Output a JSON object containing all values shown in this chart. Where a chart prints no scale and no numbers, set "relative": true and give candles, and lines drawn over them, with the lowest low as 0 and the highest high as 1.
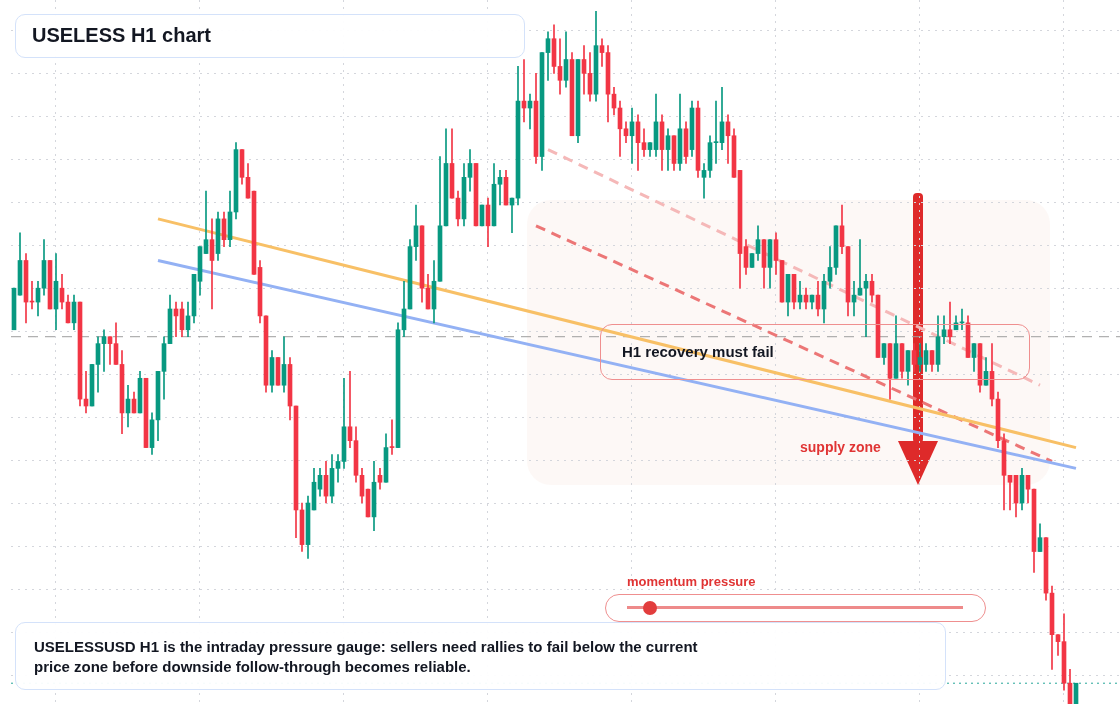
{
  "chart_data": {
    "type": "candlestick",
    "title": "USELESS H1 chart",
    "relative": true,
    "grid": true,
    "legend": false,
    "colors": [
      "#089981",
      "#089981",
      "#f23645",
      "#f23645",
      "#089981",
      "#089981",
      "#f23645",
      "#089981",
      "#f23645",
      "#f23645",
      "#089981",
      "#f23645",
      "#f23645",
      "#089981",
      "#089981",
      "#089981",
      "#f23645",
      "#f23645",
      "#f23645",
      "#089981",
      "#f23645",
      "#089981",
      "#f23645",
      "#089981",
      "#089981",
      "#089981",
      "#089981",
      "#f23645",
      "#f23645",
      "#089981",
      "#089981",
      "#089981",
      "#089981",
      "#f23645",
      "#089981",
      "#f23645",
      "#089981",
      "#089981",
      "#f23645",
      "#f23645",
      "#f23645",
      "#f23645",
      "#f23645",
      "#089981",
      "#f23645",
      "#089981",
      "#f23645",
      "#f23645",
      "#f23645",
      "#089981",
      "#089981",
      "#089981",
      "#f23645",
      "#089981",
      "#089981",
      "#089981",
      "#f23645",
      "#f23645",
      "#f23645",
      "#f23645",
      "#089981",
      "#f23645",
      "#089981",
      "#f23645",
      "#089981",
      "#089981",
      "#089981",
      "#089981",
      "#f23645",
      "#f23645",
      "#089981",
      "#089981",
      "#089981",
      "#f23645",
      "#f23645",
      "#089981",
      "#089981",
      "#f23645",
      "#089981",
      "#f23645",
      "#089981",
      "#089981",
      "#f23645",
      "#089981",
      "#089981",
      "#f23645",
      "#089981",
      "#f23645",
      "#089981",
      "#089981",
      "#f23645",
      "#f23645",
      "#089981",
      "#f23645",
      "#089981",
      "#f23645",
      "#f23645",
      "#089981",
      "#f23645",
      "#f23645",
      "#f23645",
      "#f23645",
      "#f23645",
      "#089981",
      "#f23645",
      "#f23645",
      "#089981",
      "#089981",
      "#f23645",
      "#089981",
      "#f23645",
      "#089981",
      "#f23645",
      "#089981",
      "#f23645",
      "#089981",
      "#089981",
      "#089981",
      "#089981",
      "#f23645",
      "#f23645",
      "#f23645",
      "#f23645",
      "#089981",
      "#089981",
      "#f23645",
      "#089981",
      "#f23645",
      "#f23645",
      "#089981",
      "#f23645",
      "#089981",
      "#f23645",
      "#089981",
      "#f23645",
      "#089981",
      "#089981",
      "#089981",
      "#f23645",
      "#f23645",
      "#089981",
      "#089981",
      "#089981",
      "#f23645",
      "#f23645",
      "#089981",
      "#f23645",
      "#089981",
      "#f23645",
      "#089981",
      "#f23645",
      "#089981",
      "#089981",
      "#f23645",
      "#089981",
      "#089981",
      "#f23645",
      "#089981",
      "#089981",
      "#f23645",
      "#089981",
      "#f23645",
      "#089981",
      "#f23645",
      "#f23645",
      "#f23645",
      "#f23645",
      "#f23645",
      "#089981",
      "#f23645",
      "#f23645",
      "#089981",
      "#f23645",
      "#f23645",
      "#f23645",
      "#f23645",
      "#f23645",
      "#089981"
    ],
    "categories": [
      null,
      null,
      null,
      null,
      null,
      null,
      null,
      null,
      null,
      null,
      null,
      null,
      null,
      null,
      null,
      null,
      null,
      null,
      null,
      null,
      null,
      null,
      null,
      null,
      null,
      null,
      null,
      null,
      null,
      null,
      null,
      null,
      null,
      null,
      null,
      null,
      null,
      null,
      null,
      null,
      null,
      null,
      null,
      null,
      null,
      null,
      null,
      null,
      null,
      null,
      null,
      null,
      null,
      null,
      null,
      null,
      null,
      null,
      null,
      null,
      null,
      null,
      null,
      null,
      null,
      null,
      null,
      null,
      null,
      null,
      null,
      null,
      null,
      null,
      null,
      null,
      null,
      null,
      null,
      null,
      null,
      null,
      null,
      null,
      null,
      null,
      null,
      null,
      null,
      null,
      null,
      null,
      null,
      null,
      null,
      null,
      null,
      null,
      null,
      null,
      null,
      null,
      null,
      null,
      null,
      null,
      null,
      null,
      null,
      null,
      null,
      null,
      null,
      null,
      null,
      null,
      null,
      null,
      null,
      null,
      null,
      null,
      null,
      null,
      null,
      null,
      null,
      null,
      null,
      null,
      null,
      null,
      null,
      null,
      null,
      null,
      null,
      null,
      null,
      null,
      null,
      null,
      null,
      null,
      null,
      null,
      null,
      null,
      null,
      null,
      null,
      null,
      null,
      null,
      null,
      null,
      null,
      null,
      null,
      null,
      null,
      null,
      null,
      null,
      null,
      null,
      null,
      null,
      null,
      null,
      null,
      null,
      null,
      null,
      null,
      null,
      null,
      null
    ],
    "ohlc": [
      [
        0.54,
        0.6,
        0.54,
        0.6
      ],
      [
        0.59,
        0.68,
        0.59,
        0.64
      ],
      [
        0.64,
        0.65,
        0.55,
        0.58
      ],
      [
        0.58,
        0.61,
        0.57,
        0.58
      ],
      [
        0.58,
        0.61,
        0.56,
        0.6
      ],
      [
        0.6,
        0.67,
        0.59,
        0.64
      ],
      [
        0.64,
        0.64,
        0.57,
        0.57
      ],
      [
        0.57,
        0.65,
        0.54,
        0.61
      ],
      [
        0.6,
        0.62,
        0.57,
        0.58
      ],
      [
        0.58,
        0.59,
        0.55,
        0.55
      ],
      [
        0.55,
        0.59,
        0.54,
        0.58
      ],
      [
        0.58,
        0.58,
        0.43,
        0.44
      ],
      [
        0.44,
        0.48,
        0.42,
        0.43
      ],
      [
        0.43,
        0.49,
        0.43,
        0.49
      ],
      [
        0.49,
        0.53,
        0.45,
        0.52
      ],
      [
        0.52,
        0.54,
        0.48,
        0.53
      ],
      [
        0.53,
        0.53,
        0.49,
        0.52
      ],
      [
        0.52,
        0.55,
        0.49,
        0.49
      ],
      [
        0.49,
        0.51,
        0.39,
        0.42
      ],
      [
        0.42,
        0.46,
        0.4,
        0.44
      ],
      [
        0.44,
        0.45,
        0.42,
        0.42
      ],
      [
        0.42,
        0.48,
        0.42,
        0.47
      ],
      [
        0.47,
        0.47,
        0.37,
        0.37
      ],
      [
        0.37,
        0.42,
        0.36,
        0.41
      ],
      [
        0.41,
        0.48,
        0.38,
        0.48
      ],
      [
        0.48,
        0.53,
        0.44,
        0.52
      ],
      [
        0.52,
        0.59,
        0.52,
        0.57
      ],
      [
        0.57,
        0.58,
        0.53,
        0.56
      ],
      [
        0.57,
        0.58,
        0.53,
        0.54
      ],
      [
        0.54,
        0.58,
        0.53,
        0.56
      ],
      [
        0.56,
        0.62,
        0.55,
        0.62
      ],
      [
        0.61,
        0.66,
        0.59,
        0.66
      ],
      [
        0.65,
        0.74,
        0.65,
        0.67
      ],
      [
        0.67,
        0.7,
        0.57,
        0.64
      ],
      [
        0.65,
        0.71,
        0.64,
        0.7
      ],
      [
        0.7,
        0.71,
        0.66,
        0.67
      ],
      [
        0.67,
        0.74,
        0.66,
        0.71
      ],
      [
        0.71,
        0.81,
        0.7,
        0.8
      ],
      [
        0.8,
        0.8,
        0.75,
        0.76
      ],
      [
        0.76,
        0.78,
        0.73,
        0.73
      ],
      [
        0.74,
        0.74,
        0.62,
        0.62
      ],
      [
        0.63,
        0.64,
        0.55,
        0.56
      ],
      [
        0.56,
        0.56,
        0.45,
        0.46
      ],
      [
        0.46,
        0.51,
        0.45,
        0.5
      ],
      [
        0.5,
        0.5,
        0.46,
        0.46
      ],
      [
        0.46,
        0.53,
        0.45,
        0.49
      ],
      [
        0.49,
        0.5,
        0.41,
        0.43
      ],
      [
        0.43,
        0.43,
        0.24,
        0.28
      ],
      [
        0.28,
        0.29,
        0.22,
        0.23
      ],
      [
        0.23,
        0.3,
        0.21,
        0.29
      ],
      [
        0.28,
        0.34,
        0.28,
        0.32
      ],
      [
        0.31,
        0.34,
        0.3,
        0.33
      ],
      [
        0.33,
        0.35,
        0.29,
        0.3
      ],
      [
        0.3,
        0.36,
        0.29,
        0.34
      ],
      [
        0.34,
        0.36,
        0.32,
        0.35
      ],
      [
        0.35,
        0.47,
        0.34,
        0.4
      ],
      [
        0.4,
        0.48,
        0.37,
        0.38
      ],
      [
        0.38,
        0.4,
        0.32,
        0.33
      ],
      [
        0.33,
        0.34,
        0.29,
        0.3
      ],
      [
        0.31,
        0.31,
        0.27,
        0.27
      ],
      [
        0.27,
        0.35,
        0.25,
        0.32
      ],
      [
        0.33,
        0.34,
        0.31,
        0.32
      ],
      [
        0.32,
        0.39,
        0.32,
        0.37
      ],
      [
        0.37,
        0.41,
        0.36,
        0.37
      ],
      [
        0.37,
        0.55,
        0.37,
        0.54
      ],
      [
        0.54,
        0.61,
        0.53,
        0.57
      ],
      [
        0.57,
        0.67,
        0.57,
        0.66
      ],
      [
        0.66,
        0.72,
        0.64,
        0.69
      ],
      [
        0.69,
        0.69,
        0.58,
        0.6
      ],
      [
        0.6,
        0.62,
        0.57,
        0.57
      ],
      [
        0.57,
        0.64,
        0.55,
        0.61
      ],
      [
        0.61,
        0.79,
        0.61,
        0.69
      ],
      [
        0.69,
        0.83,
        0.69,
        0.78
      ],
      [
        0.78,
        0.83,
        0.73,
        0.73
      ],
      [
        0.73,
        0.74,
        0.69,
        0.7
      ],
      [
        0.7,
        0.78,
        0.69,
        0.76
      ],
      [
        0.76,
        0.8,
        0.74,
        0.78
      ],
      [
        0.78,
        0.78,
        0.69,
        0.69
      ],
      [
        0.69,
        0.72,
        0.69,
        0.72
      ],
      [
        0.72,
        0.73,
        0.66,
        0.69
      ],
      [
        0.69,
        0.78,
        0.69,
        0.75
      ],
      [
        0.75,
        0.77,
        0.72,
        0.76
      ],
      [
        0.76,
        0.77,
        0.72,
        0.72
      ],
      [
        0.72,
        0.73,
        0.68,
        0.73
      ],
      [
        0.73,
        0.92,
        0.72,
        0.87
      ],
      [
        0.87,
        0.93,
        0.84,
        0.86
      ],
      [
        0.86,
        0.88,
        0.83,
        0.87
      ],
      [
        0.87,
        0.91,
        0.78,
        0.79
      ],
      [
        0.79,
        0.94,
        0.77,
        0.94
      ],
      [
        0.94,
        0.97,
        0.9,
        0.96
      ],
      [
        0.96,
        0.98,
        0.91,
        0.92
      ],
      [
        0.92,
        0.96,
        0.88,
        0.9
      ],
      [
        0.9,
        0.97,
        0.89,
        0.93
      ],
      [
        0.93,
        0.94,
        0.82,
        0.82
      ],
      [
        0.82,
        0.93,
        0.81,
        0.93
      ],
      [
        0.93,
        0.95,
        0.88,
        0.91
      ],
      [
        0.91,
        0.94,
        0.87,
        0.88
      ],
      [
        0.88,
        1,
        0.87,
        0.95
      ],
      [
        0.95,
        0.96,
        0.92,
        0.94
      ],
      [
        0.94,
        0.95,
        0.84,
        0.88
      ],
      [
        0.88,
        0.89,
        0.85,
        0.86
      ],
      [
        0.86,
        0.87,
        0.79,
        0.83
      ],
      [
        0.83,
        0.84,
        0.81,
        0.82
      ],
      [
        0.82,
        0.86,
        0.78,
        0.84
      ],
      [
        0.84,
        0.85,
        0.77,
        0.81
      ],
      [
        0.81,
        0.83,
        0.79,
        0.8
      ],
      [
        0.8,
        0.81,
        0.79,
        0.81
      ],
      [
        0.8,
        0.88,
        0.79,
        0.84
      ],
      [
        0.84,
        0.85,
        0.77,
        0.8
      ],
      [
        0.8,
        0.83,
        0.77,
        0.82
      ],
      [
        0.82,
        0.82,
        0.77,
        0.78
      ],
      [
        0.78,
        0.88,
        0.77,
        0.83
      ],
      [
        0.83,
        0.84,
        0.78,
        0.79
      ],
      [
        0.8,
        0.87,
        0.79,
        0.86
      ],
      [
        0.86,
        0.87,
        0.76,
        0.77
      ],
      [
        0.76,
        0.78,
        0.73,
        0.77
      ],
      [
        0.77,
        0.82,
        0.76,
        0.81
      ],
      [
        0.81,
        0.87,
        0.78,
        0.81
      ],
      [
        0.81,
        0.89,
        0.8,
        0.84
      ],
      [
        0.84,
        0.85,
        0.78,
        0.82
      ],
      [
        0.82,
        0.83,
        0.76,
        0.76
      ],
      [
        0.77,
        0.77,
        0.6,
        0.65
      ],
      [
        0.66,
        0.67,
        0.62,
        0.63
      ],
      [
        0.63,
        0.65,
        0.63,
        0.65
      ],
      [
        0.65,
        0.69,
        0.64,
        0.67
      ],
      [
        0.67,
        0.67,
        0.6,
        0.63
      ],
      [
        0.63,
        0.67,
        0.6,
        0.67
      ],
      [
        0.67,
        0.68,
        0.62,
        0.64
      ],
      [
        0.64,
        0.64,
        0.58,
        0.58
      ],
      [
        0.58,
        0.62,
        0.56,
        0.62
      ],
      [
        0.62,
        0.62,
        0.57,
        0.58
      ],
      [
        0.58,
        0.61,
        0.57,
        0.59
      ],
      [
        0.59,
        0.6,
        0.57,
        0.58
      ],
      [
        0.58,
        0.59,
        0.57,
        0.59
      ],
      [
        0.59,
        0.61,
        0.56,
        0.57
      ],
      [
        0.57,
        0.62,
        0.55,
        0.61
      ],
      [
        0.61,
        0.66,
        0.6,
        0.63
      ],
      [
        0.63,
        0.69,
        0.62,
        0.69
      ],
      [
        0.69,
        0.72,
        0.65,
        0.66
      ],
      [
        0.66,
        0.66,
        0.56,
        0.58
      ],
      [
        0.58,
        0.61,
        0.56,
        0.59
      ],
      [
        0.59,
        0.67,
        0.59,
        0.6
      ],
      [
        0.6,
        0.62,
        0.53,
        0.61
      ],
      [
        0.61,
        0.62,
        0.58,
        0.59
      ],
      [
        0.59,
        0.59,
        0.5,
        0.5
      ],
      [
        0.5,
        0.52,
        0.49,
        0.52
      ],
      [
        0.52,
        0.52,
        0.44,
        0.47
      ],
      [
        0.47,
        0.56,
        0.47,
        0.52
      ],
      [
        0.52,
        0.52,
        0.47,
        0.48
      ],
      [
        0.48,
        0.51,
        0.46,
        0.51
      ],
      [
        0.51,
        0.52,
        0.48,
        0.49
      ],
      [
        0.49,
        0.52,
        0.48,
        0.5
      ],
      [
        0.49,
        0.52,
        0.48,
        0.51
      ],
      [
        0.51,
        0.51,
        0.48,
        0.49
      ],
      [
        0.49,
        0.56,
        0.48,
        0.53
      ],
      [
        0.53,
        0.56,
        0.52,
        0.54
      ],
      [
        0.54,
        0.58,
        0.52,
        0.53
      ],
      [
        0.54,
        0.56,
        0.54,
        0.55
      ],
      [
        0.55,
        0.57,
        0.54,
        0.55
      ],
      [
        0.55,
        0.56,
        0.5,
        0.5
      ],
      [
        0.5,
        0.52,
        0.48,
        0.52
      ],
      [
        0.52,
        0.52,
        0.45,
        0.46
      ],
      [
        0.46,
        0.5,
        0.46,
        0.48
      ],
      [
        0.48,
        0.52,
        0.43,
        0.44
      ],
      [
        0.44,
        0.45,
        0.37,
        0.38
      ],
      [
        0.38,
        0.39,
        0.28,
        0.33
      ],
      [
        0.33,
        0.33,
        0.28,
        0.32
      ],
      [
        0.33,
        0.33,
        0.27,
        0.29
      ],
      [
        0.29,
        0.34,
        0.28,
        0.33
      ],
      [
        0.33,
        0.33,
        0.29,
        0.31
      ],
      [
        0.31,
        0.31,
        0.19,
        0.22
      ],
      [
        0.22,
        0.26,
        0.22,
        0.24
      ],
      [
        0.24,
        0.24,
        0.15,
        0.16
      ],
      [
        0.16,
        0.17,
        0.05,
        0.1
      ],
      [
        0.1,
        0.1,
        0.07,
        0.09
      ],
      [
        0.09,
        0.13,
        0.02,
        0.03
      ],
      [
        0.03,
        0.05,
        0,
        0
      ],
      [
        0,
        0.03,
        0,
        0.03
      ]
    ],
    "series": [
      {
        "type": "line",
        "color": "#f8c066",
        "values": [
          null,
          null,
          null,
          null,
          null,
          null,
          null,
          null,
          null,
          null,
          null,
          null,
          null,
          null,
          null,
          null,
          null,
          null,
          null,
          null,
          null,
          null,
          null,
          null,
          0.7,
          null,
          null,
          null,
          null,
          null,
          null,
          null,
          null,
          null,
          null,
          null,
          null,
          null,
          null,
          null,
          null,
          null,
          null,
          null,
          null,
          null,
          null,
          null,
          null,
          null,
          null,
          null,
          null,
          null,
          null,
          null,
          null,
          null,
          null,
          null,
          null,
          null,
          null,
          null,
          null,
          null,
          null,
          null,
          null,
          null,
          null,
          null,
          null,
          null,
          null,
          null,
          null,
          null,
          null,
          null,
          null,
          null,
          null,
          null,
          null,
          null,
          null,
          null,
          null,
          null,
          null,
          null,
          null,
          null,
          null,
          null,
          null,
          null,
          null,
          null,
          null,
          null,
          null,
          null,
          null,
          null,
          null,
          null,
          null,
          null,
          null,
          null,
          null,
          null,
          null,
          null,
          null,
          null,
          null,
          null,
          null,
          null,
          null,
          null,
          null,
          null,
          null,
          null,
          null,
          null,
          null,
          null,
          null,
          null,
          null,
          null,
          null,
          null,
          null,
          null,
          null,
          null,
          null,
          null,
          null,
          null,
          null,
          null,
          null,
          null,
          null,
          null,
          null,
          null,
          null,
          null,
          null,
          null,
          null,
          null,
          null,
          null,
          null,
          null,
          null,
          null,
          null,
          null,
          null,
          null,
          null,
          null,
          null,
          null,
          null,
          null,
          null,
          0.37
        ]
      },
      {
        "type": "line",
        "color": "#93b1f4",
        "values": [
          null,
          null,
          null,
          null,
          null,
          null,
          null,
          null,
          null,
          null,
          null,
          null,
          null,
          null,
          null,
          null,
          null,
          null,
          null,
          null,
          null,
          null,
          null,
          null,
          0.64,
          null,
          null,
          null,
          null,
          null,
          null,
          null,
          null,
          null,
          null,
          null,
          null,
          null,
          null,
          null,
          null,
          null,
          null,
          null,
          null,
          null,
          null,
          null,
          null,
          null,
          null,
          null,
          null,
          null,
          null,
          null,
          null,
          null,
          null,
          null,
          null,
          null,
          null,
          null,
          null,
          null,
          null,
          null,
          null,
          null,
          null,
          null,
          null,
          null,
          null,
          null,
          null,
          null,
          null,
          null,
          null,
          null,
          null,
          null,
          null,
          null,
          null,
          null,
          null,
          null,
          null,
          null,
          null,
          null,
          null,
          null,
          null,
          null,
          null,
          null,
          null,
          null,
          null,
          null,
          null,
          null,
          null,
          null,
          null,
          null,
          null,
          null,
          null,
          null,
          null,
          null,
          null,
          null,
          null,
          null,
          null,
          null,
          null,
          null,
          null,
          null,
          null,
          null,
          null,
          null,
          null,
          null,
          null,
          null,
          null,
          null,
          null,
          null,
          null,
          null,
          null,
          null,
          null,
          null,
          null,
          null,
          null,
          null,
          null,
          null,
          null,
          null,
          null,
          null,
          null,
          null,
          null,
          null,
          null,
          null,
          null,
          null,
          null,
          null,
          null,
          null,
          null,
          null,
          null,
          null,
          null,
          null,
          null,
          null,
          null,
          null,
          null,
          0.34
        ]
      },
      {
        "type": "line",
        "color": "#ec7676",
        "line_style": "dashed",
        "values": [
          null,
          null,
          null,
          null,
          null,
          null,
          null,
          null,
          null,
          null,
          null,
          null,
          null,
          null,
          null,
          null,
          null,
          null,
          null,
          null,
          null,
          null,
          null,
          null,
          null,
          null,
          null,
          null,
          null,
          null,
          null,
          null,
          null,
          null,
          null,
          null,
          null,
          null,
          null,
          null,
          null,
          null,
          null,
          null,
          null,
          null,
          null,
          null,
          null,
          null,
          null,
          null,
          null,
          null,
          null,
          null,
          null,
          null,
          null,
          null,
          null,
          null,
          null,
          null,
          null,
          null,
          null,
          null,
          null,
          null,
          null,
          null,
          null,
          null,
          null,
          null,
          null,
          null,
          null,
          null,
          null,
          null,
          null,
          null,
          null,
          null,
          null,
          0.69,
          null,
          null,
          null,
          null,
          null,
          null,
          null,
          null,
          null,
          null,
          null,
          null,
          null,
          null,
          null,
          null,
          null,
          null,
          null,
          null,
          null,
          null,
          null,
          null,
          null,
          null,
          null,
          null,
          null,
          null,
          null,
          null,
          null,
          null,
          null,
          null,
          null,
          null,
          null,
          null,
          null,
          null,
          null,
          null,
          null,
          null,
          null,
          null,
          null,
          null,
          null,
          null,
          null,
          null,
          null,
          null,
          null,
          null,
          null,
          null,
          null,
          null,
          null,
          null,
          null,
          null,
          null,
          null,
          null,
          null,
          null,
          null,
          null,
          null,
          null,
          null,
          null,
          null,
          null,
          null,
          null,
          null,
          null,
          null,
          null,
          0.35,
          null,
          null,
          null,
          null
        ]
      },
      {
        "type": "line",
        "color": "#f5b8b8",
        "line_style": "dashed",
        "values": [
          null,
          null,
          null,
          null,
          null,
          null,
          null,
          null,
          null,
          null,
          null,
          null,
          null,
          null,
          null,
          null,
          null,
          null,
          null,
          null,
          null,
          null,
          null,
          null,
          null,
          null,
          null,
          null,
          null,
          null,
          null,
          null,
          null,
          null,
          null,
          null,
          null,
          null,
          null,
          null,
          null,
          null,
          null,
          null,
          null,
          null,
          null,
          null,
          null,
          null,
          null,
          null,
          null,
          null,
          null,
          null,
          null,
          null,
          null,
          null,
          null,
          null,
          null,
          null,
          null,
          null,
          null,
          null,
          null,
          null,
          null,
          null,
          null,
          null,
          null,
          null,
          null,
          null,
          null,
          null,
          null,
          null,
          null,
          null,
          null,
          null,
          null,
          null,
          null,
          0.8,
          null,
          null,
          null,
          null,
          null,
          null,
          null,
          null,
          null,
          null,
          null,
          null,
          null,
          null,
          null,
          null,
          null,
          null,
          null,
          null,
          null,
          null,
          null,
          null,
          null,
          null,
          null,
          null,
          null,
          null,
          null,
          null,
          null,
          null,
          null,
          null,
          null,
          null,
          null,
          null,
          null,
          null,
          null,
          null,
          null,
          null,
          null,
          null,
          null,
          null,
          null,
          null,
          null,
          null,
          null,
          null,
          null,
          null,
          null,
          null,
          null,
          null,
          null,
          null,
          null,
          null,
          null,
          null,
          null,
          null,
          null,
          null,
          null,
          null,
          null,
          null,
          null,
          null,
          null,
          null,
          null,
          0.46,
          null,
          null,
          null,
          null,
          null,
          null
        ]
      }
    ],
    "ref_lines": [
      {
        "axis": "y",
        "value": 0.53,
        "color": "#9e9e9e",
        "line_style": "dashed"
      },
      {
        "axis": "y",
        "value": 0.03,
        "color": "#26a69a",
        "line_style": "dotted"
      }
    ],
    "annotations": [
      "H1 recovery must fail",
      "supply zone",
      "momentum pressure",
      "USELESSUSD H1 is the intraday pressure gauge: sellers need rallies to fail below the current price zone before downside follow-through becomes reliable."
    ]
  }
}
